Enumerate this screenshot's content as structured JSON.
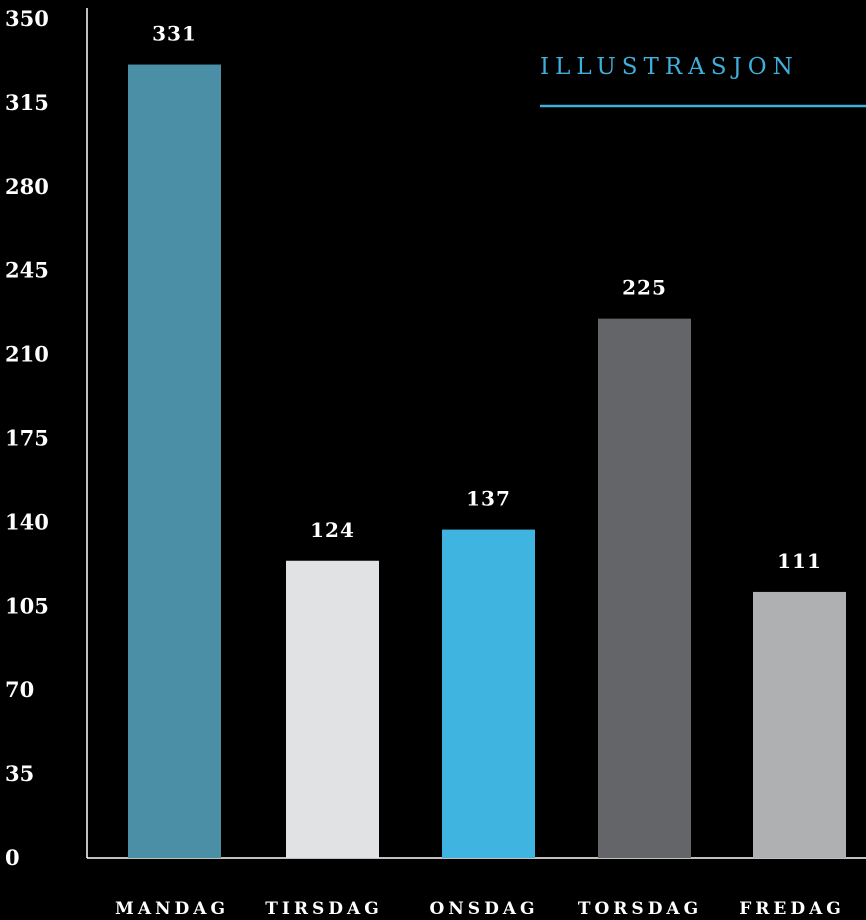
{
  "chart_data": {
    "type": "bar",
    "title": "ILLUSTRASJON",
    "categories": [
      "MANDAG",
      "TIRSDAG",
      "ONSDAG",
      "TORSDAG",
      "FREDAG"
    ],
    "values": [
      331,
      124,
      137,
      225,
      111
    ],
    "value_labels": [
      "331",
      "124",
      "137",
      "225",
      "111"
    ],
    "bar_colors": [
      "#4a8fa6",
      "#e1e2e4",
      "#40b4e0",
      "#646568",
      "#afb0b2"
    ],
    "ylim": [
      0,
      350
    ],
    "yticks": [
      "0",
      "35",
      "70",
      "105",
      "140",
      "175",
      "210",
      "245",
      "280",
      "315",
      "350"
    ],
    "xlabel": "",
    "ylabel": "",
    "grid": false,
    "legend": "none"
  }
}
